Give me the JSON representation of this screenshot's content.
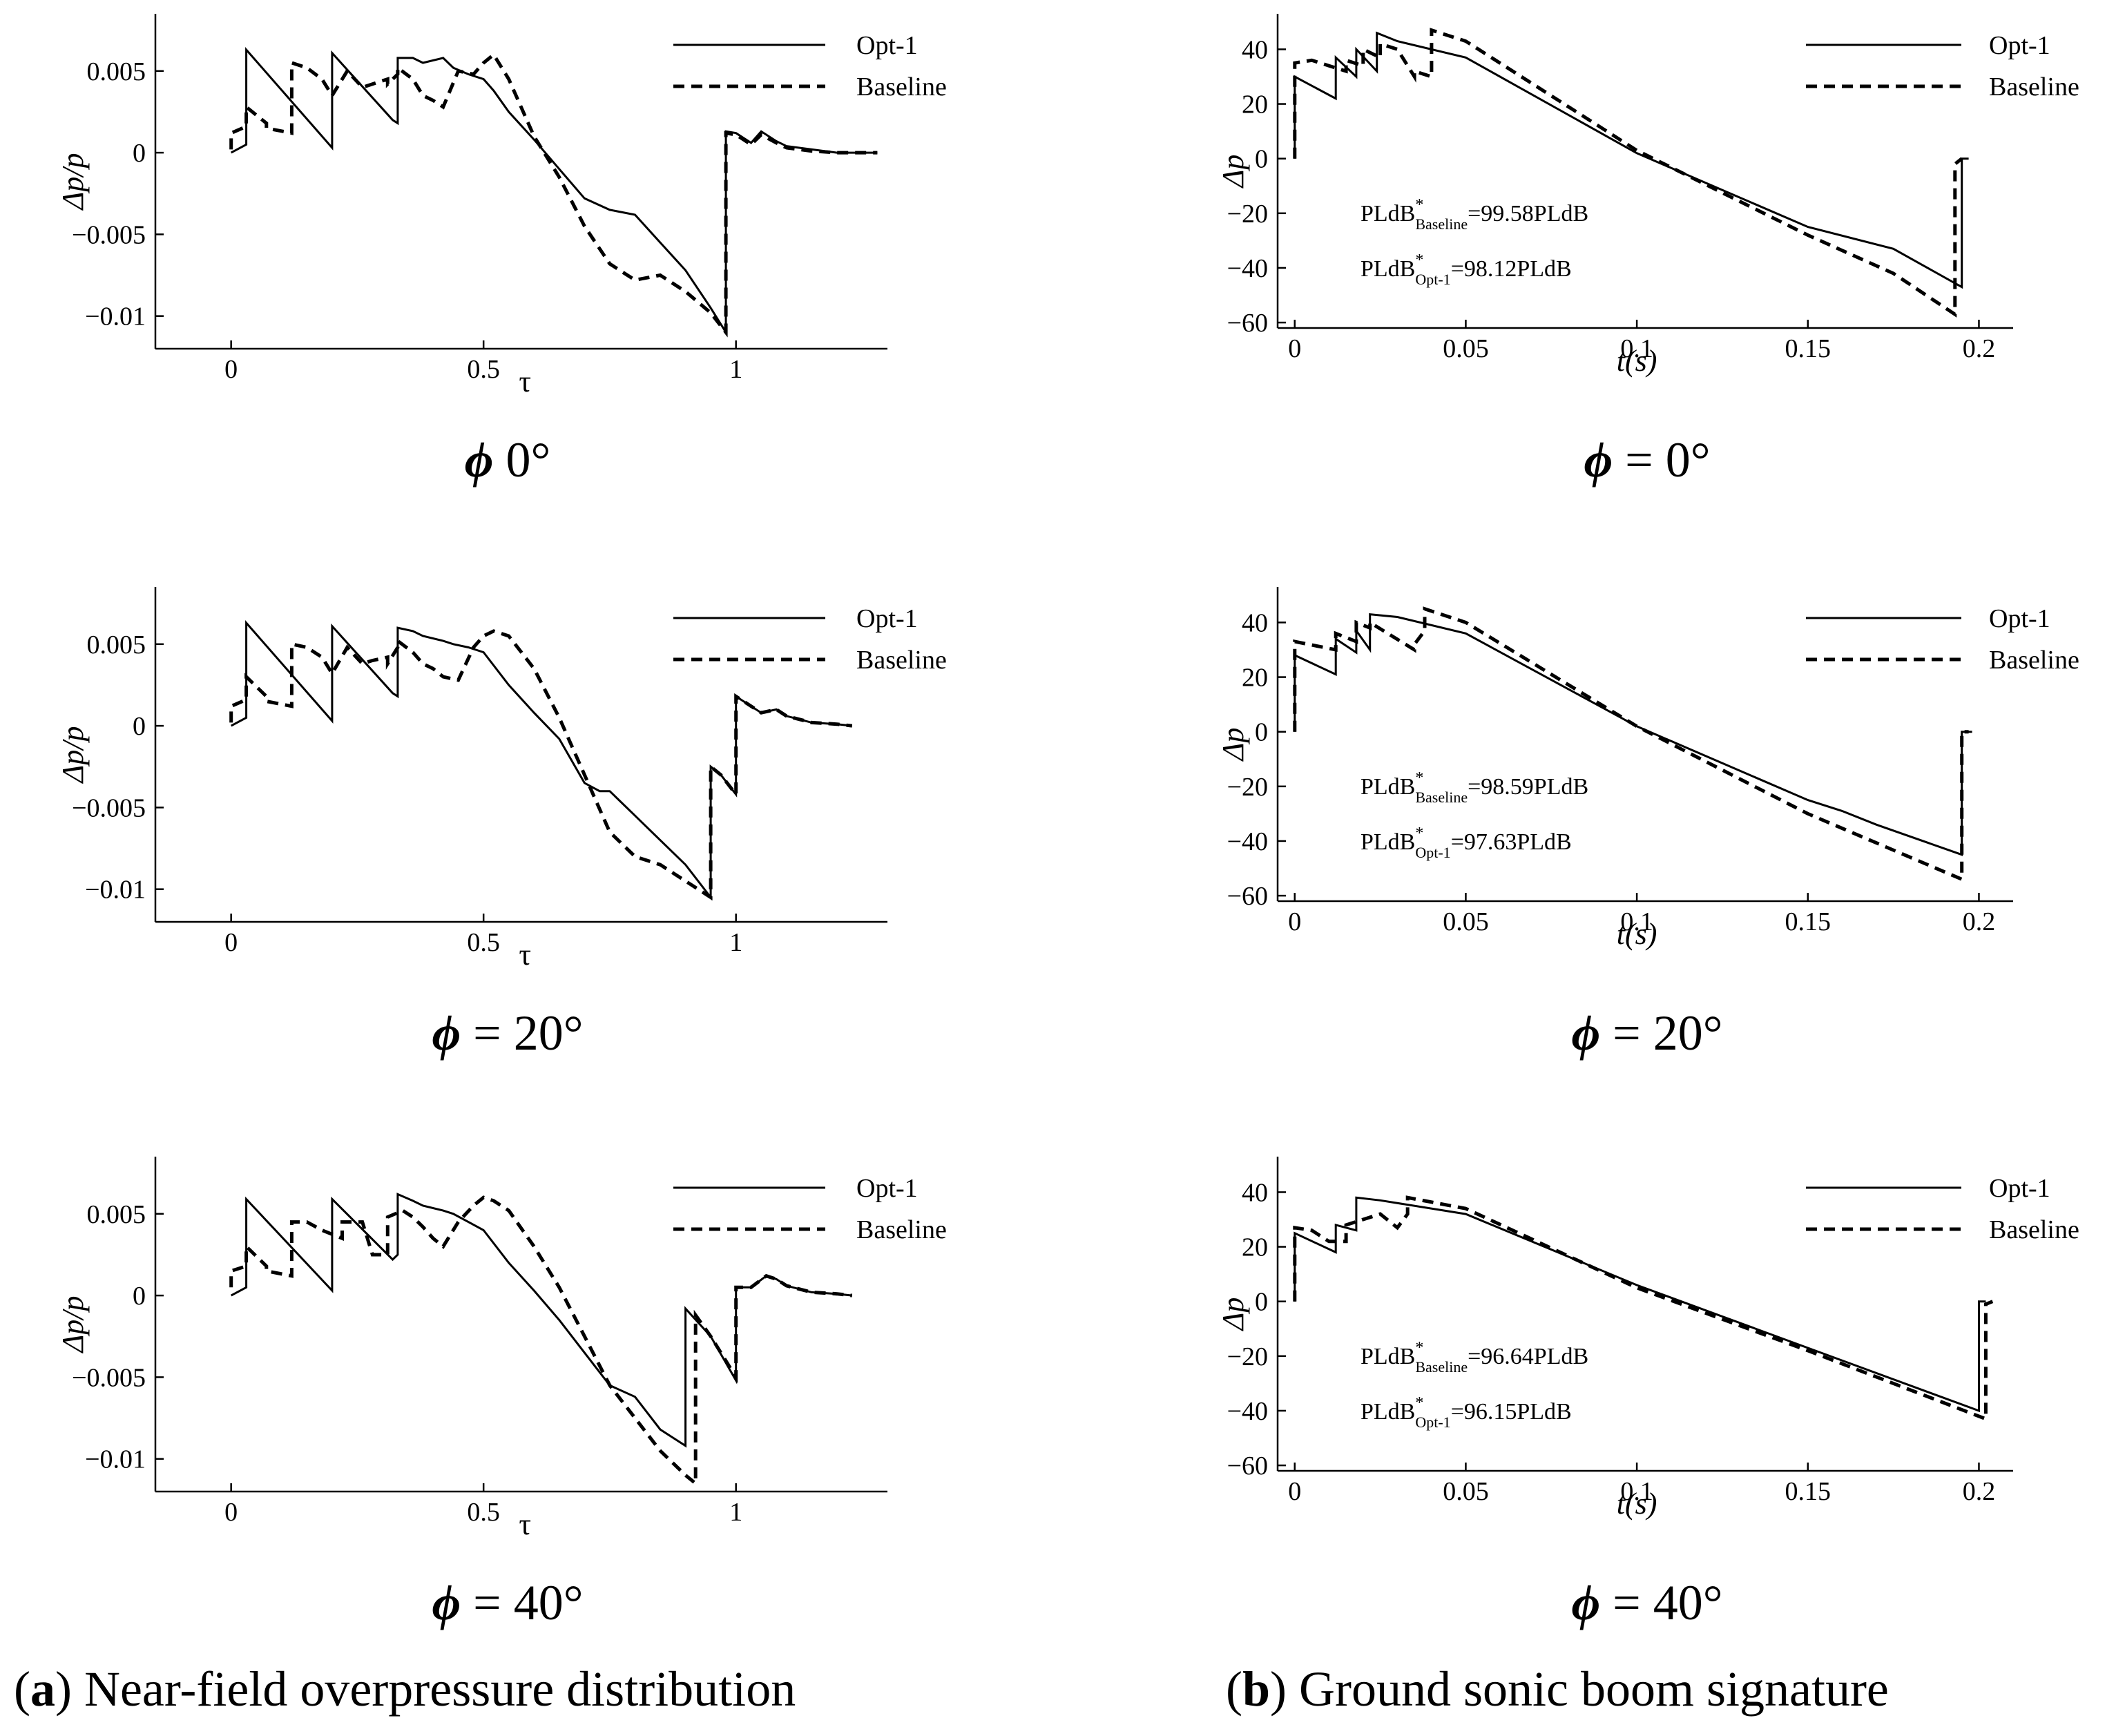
{
  "captions": {
    "a": {
      "letter": "a",
      "text": "Near-field overpressure distribution"
    },
    "b": {
      "letter": "b",
      "text": "Ground sonic boom signature"
    }
  },
  "legend": {
    "opt": "Opt-1",
    "base": "Baseline"
  },
  "chart_data": [
    {
      "id": "a0",
      "type": "line",
      "subtitle_symbol": "ϕ",
      "subtitle_value": "0°",
      "xlabel": "τ",
      "ylabel": "Δp/p",
      "xlim": [
        -0.15,
        1.3
      ],
      "ylim": [
        -0.012,
        0.0085
      ],
      "xticks": [
        0,
        0.5,
        1
      ],
      "xticklabels": [
        "0",
        "0.5",
        "1"
      ],
      "yticks": [
        0.005,
        0,
        -0.005,
        -0.01
      ],
      "yticklabels": [
        "0.005",
        "0",
        "−0.005",
        "−0.01"
      ],
      "legend_position": "top-right",
      "series": [
        {
          "name": "Opt-1",
          "style": "solid",
          "x": [
            0,
            0.03,
            0.03,
            0.2,
            0.2,
            0.32,
            0.33,
            0.33,
            0.36,
            0.38,
            0.42,
            0.44,
            0.47,
            0.5,
            0.52,
            0.55,
            0.6,
            0.65,
            0.7,
            0.75,
            0.8,
            0.85,
            0.9,
            0.95,
            0.98,
            0.98,
            1.0,
            1.03,
            1.05,
            1.08,
            1.1,
            1.15,
            1.2,
            1.25,
            1.28
          ],
          "y": [
            0,
            0.0005,
            0.0063,
            0.0003,
            0.0061,
            0.002,
            0.0018,
            0.0058,
            0.0058,
            0.0055,
            0.0058,
            0.0052,
            0.0048,
            0.0045,
            0.0038,
            0.0025,
            0.0008,
            -0.001,
            -0.0028,
            -0.0035,
            -0.0038,
            -0.0055,
            -0.0072,
            -0.0095,
            -0.011,
            0.0013,
            0.0012,
            0.0006,
            0.0013,
            0.0007,
            0.0004,
            0.0002,
            0,
            0,
            0
          ]
        },
        {
          "name": "Baseline",
          "style": "dashed",
          "x": [
            0,
            0,
            0.03,
            0.03,
            0.07,
            0.07,
            0.12,
            0.12,
            0.15,
            0.18,
            0.2,
            0.23,
            0.26,
            0.28,
            0.31,
            0.31,
            0.33,
            0.33,
            0.36,
            0.38,
            0.4,
            0.42,
            0.45,
            0.48,
            0.5,
            0.52,
            0.55,
            0.6,
            0.65,
            0.7,
            0.75,
            0.8,
            0.85,
            0.9,
            0.95,
            0.98,
            0.98,
            1.0,
            1.03,
            1.05,
            1.08,
            1.1,
            1.15,
            1.2,
            1.25,
            1.28
          ],
          "y": [
            0.0002,
            0.0012,
            0.0016,
            0.0028,
            0.0018,
            0.0015,
            0.0012,
            0.0055,
            0.0052,
            0.0045,
            0.0035,
            0.005,
            0.004,
            0.0042,
            0.0045,
            0.0042,
            0.0048,
            0.0052,
            0.0045,
            0.0035,
            0.0032,
            0.0028,
            0.005,
            0.0048,
            0.0055,
            0.006,
            0.0045,
            0.001,
            -0.0015,
            -0.0045,
            -0.0068,
            -0.0078,
            -0.0075,
            -0.0085,
            -0.0098,
            -0.011,
            0.0012,
            0.0011,
            0.0005,
            0.0011,
            0.0006,
            0.0003,
            0.0001,
            0,
            0,
            0
          ]
        }
      ]
    },
    {
      "id": "a1",
      "type": "line",
      "subtitle_symbol": "ϕ",
      "subtitle_value": "= 20°",
      "xlabel": "τ",
      "ylabel": "Δp/p",
      "xlim": [
        -0.15,
        1.3
      ],
      "ylim": [
        -0.012,
        0.0085
      ],
      "xticks": [
        0,
        0.5,
        1
      ],
      "xticklabels": [
        "0",
        "0.5",
        "1"
      ],
      "yticks": [
        0.005,
        0,
        -0.005,
        -0.01
      ],
      "yticklabels": [
        "0.005",
        "0",
        "−0.005",
        "−0.01"
      ],
      "legend_position": "top-right",
      "series": [
        {
          "name": "Opt-1",
          "style": "solid",
          "x": [
            0,
            0.03,
            0.03,
            0.2,
            0.2,
            0.32,
            0.33,
            0.33,
            0.36,
            0.38,
            0.42,
            0.44,
            0.47,
            0.5,
            0.55,
            0.6,
            0.65,
            0.7,
            0.73,
            0.75,
            0.8,
            0.85,
            0.9,
            0.95,
            0.95,
            0.97,
            1.0,
            1.0,
            1.03,
            1.05,
            1.08,
            1.1,
            1.15,
            1.2,
            1.23
          ],
          "y": [
            0,
            0.0005,
            0.0063,
            0.0003,
            0.0061,
            0.002,
            0.0018,
            0.006,
            0.0058,
            0.0055,
            0.0052,
            0.005,
            0.0048,
            0.0045,
            0.0025,
            0.0008,
            -0.0008,
            -0.0035,
            -0.004,
            -0.004,
            -0.0055,
            -0.007,
            -0.0085,
            -0.0105,
            -0.0025,
            -0.003,
            -0.0042,
            0.0018,
            0.0012,
            0.0008,
            0.001,
            0.0006,
            0.0002,
            0.0001,
            0
          ]
        },
        {
          "name": "Baseline",
          "style": "dashed",
          "x": [
            0,
            0,
            0.03,
            0.03,
            0.07,
            0.07,
            0.12,
            0.12,
            0.15,
            0.18,
            0.2,
            0.23,
            0.26,
            0.28,
            0.31,
            0.31,
            0.33,
            0.33,
            0.36,
            0.38,
            0.4,
            0.42,
            0.45,
            0.48,
            0.5,
            0.52,
            0.55,
            0.6,
            0.65,
            0.7,
            0.75,
            0.8,
            0.85,
            0.9,
            0.95,
            0.95,
            0.97,
            1.0,
            1.0,
            1.03,
            1.05,
            1.08,
            1.1,
            1.15,
            1.2,
            1.23
          ],
          "y": [
            0.0002,
            0.0012,
            0.0016,
            0.003,
            0.0018,
            0.0015,
            0.0012,
            0.005,
            0.0048,
            0.0042,
            0.0032,
            0.0048,
            0.0038,
            0.004,
            0.0042,
            0.0038,
            0.0048,
            0.0052,
            0.0045,
            0.0038,
            0.0035,
            0.003,
            0.0028,
            0.0048,
            0.0055,
            0.0058,
            0.0055,
            0.0035,
            0.0005,
            -0.003,
            -0.0065,
            -0.008,
            -0.0085,
            -0.0095,
            -0.0105,
            -0.0025,
            -0.003,
            -0.0042,
            0.0018,
            0.0012,
            0.0008,
            0.001,
            0.0006,
            0.0002,
            0.0001,
            0
          ]
        }
      ]
    },
    {
      "id": "a2",
      "type": "line",
      "subtitle_symbol": "ϕ",
      "subtitle_value": "= 40°",
      "xlabel": "τ",
      "ylabel": "Δp/p",
      "xlim": [
        -0.15,
        1.3
      ],
      "ylim": [
        -0.012,
        0.0085
      ],
      "xticks": [
        0,
        0.5,
        1
      ],
      "xticklabels": [
        "0",
        "0.5",
        "1"
      ],
      "yticks": [
        0.005,
        0,
        -0.005,
        -0.01
      ],
      "yticklabels": [
        "0.005",
        "0",
        "−0.005",
        "−0.01"
      ],
      "legend_position": "top-right",
      "series": [
        {
          "name": "Opt-1",
          "style": "solid",
          "x": [
            0,
            0.03,
            0.03,
            0.2,
            0.2,
            0.32,
            0.32,
            0.33,
            0.33,
            0.36,
            0.38,
            0.42,
            0.44,
            0.47,
            0.5,
            0.55,
            0.6,
            0.65,
            0.7,
            0.75,
            0.8,
            0.85,
            0.9,
            0.9,
            0.95,
            1.0,
            1.0,
            1.03,
            1.06,
            1.08,
            1.1,
            1.15,
            1.2,
            1.23
          ],
          "y": [
            0,
            0.0005,
            0.0059,
            0.0003,
            0.0059,
            0.0022,
            0.0022,
            0.0025,
            0.0062,
            0.0058,
            0.0055,
            0.0052,
            0.005,
            0.0045,
            0.004,
            0.002,
            0.0003,
            -0.0015,
            -0.0035,
            -0.0055,
            -0.0062,
            -0.0082,
            -0.0092,
            -0.0008,
            -0.0025,
            -0.0052,
            0.0005,
            0.0005,
            0.0012,
            0.001,
            0.0006,
            0.0002,
            0.0001,
            0
          ]
        },
        {
          "name": "Baseline",
          "style": "dashed",
          "x": [
            0,
            0,
            0.03,
            0.03,
            0.07,
            0.07,
            0.12,
            0.12,
            0.15,
            0.18,
            0.22,
            0.22,
            0.26,
            0.28,
            0.31,
            0.31,
            0.34,
            0.36,
            0.38,
            0.4,
            0.42,
            0.45,
            0.48,
            0.5,
            0.52,
            0.55,
            0.6,
            0.65,
            0.7,
            0.75,
            0.8,
            0.85,
            0.9,
            0.92,
            0.92,
            0.95,
            1.0,
            1.0,
            1.03,
            1.06,
            1.08,
            1.1,
            1.15,
            1.2,
            1.23
          ],
          "y": [
            0.0005,
            0.0015,
            0.0018,
            0.003,
            0.0018,
            0.0015,
            0.0012,
            0.0045,
            0.0045,
            0.004,
            0.0035,
            0.0045,
            0.0045,
            0.0025,
            0.0025,
            0.0048,
            0.0052,
            0.0048,
            0.0042,
            0.0035,
            0.003,
            0.0045,
            0.0055,
            0.006,
            0.0058,
            0.0052,
            0.003,
            0.0005,
            -0.0025,
            -0.0055,
            -0.0075,
            -0.0095,
            -0.011,
            -0.0115,
            -0.0012,
            -0.0025,
            -0.005,
            0.0005,
            0.0005,
            0.0012,
            0.001,
            0.0006,
            0.0002,
            0.0001,
            0
          ]
        }
      ]
    },
    {
      "id": "b0",
      "type": "line",
      "subtitle_symbol": "ϕ",
      "subtitle_value": "= 0°",
      "xlabel": "t(s)",
      "ylabel": "Δp",
      "xlim": [
        -0.005,
        0.21
      ],
      "ylim": [
        -62,
        53
      ],
      "xticks": [
        0,
        0.05,
        0.1,
        0.15,
        0.2
      ],
      "xticklabels": [
        "0",
        "0.05",
        "0.1",
        "0.15",
        "0.2"
      ],
      "yticks": [
        40,
        20,
        0,
        -20,
        -40,
        -60
      ],
      "yticklabels": [
        "40",
        "20",
        "0",
        "−20",
        "−40",
        "−60"
      ],
      "legend_position": "top-right",
      "annotations": [
        {
          "label": "PLdB",
          "sup": "*",
          "sub": "Baseline",
          "value": "=99.58PLdB"
        },
        {
          "label": "PLdB",
          "sup": "*",
          "sub": "Opt-1",
          "value": "=98.12PLdB"
        }
      ],
      "series": [
        {
          "name": "Opt-1",
          "style": "solid",
          "x": [
            0,
            0,
            0.012,
            0.012,
            0.018,
            0.018,
            0.024,
            0.024,
            0.03,
            0.05,
            0.1,
            0.15,
            0.175,
            0.195,
            0.195,
            0.197
          ],
          "y": [
            0,
            30,
            22,
            37,
            30,
            40,
            32,
            46,
            43,
            37,
            2,
            -25,
            -33,
            -47,
            0,
            0
          ]
        },
        {
          "name": "Baseline",
          "style": "dashed",
          "x": [
            0,
            0,
            0.005,
            0.01,
            0.015,
            0.015,
            0.02,
            0.02,
            0.025,
            0.025,
            0.03,
            0.035,
            0.035,
            0.04,
            0.04,
            0.05,
            0.1,
            0.15,
            0.175,
            0.193,
            0.193,
            0.195
          ],
          "y": [
            0,
            35,
            36,
            34,
            32,
            36,
            34,
            40,
            37,
            42,
            40,
            30,
            32,
            30,
            47,
            43,
            3,
            -28,
            -42,
            -57,
            -2,
            0
          ]
        }
      ]
    },
    {
      "id": "b1",
      "type": "line",
      "subtitle_symbol": "ϕ",
      "subtitle_value": "= 20°",
      "xlabel": "t(s)",
      "ylabel": "Δp",
      "xlim": [
        -0.005,
        0.21
      ],
      "ylim": [
        -62,
        53
      ],
      "xticks": [
        0,
        0.05,
        0.1,
        0.15,
        0.2
      ],
      "xticklabels": [
        "0",
        "0.05",
        "0.1",
        "0.15",
        "0.2"
      ],
      "yticks": [
        40,
        20,
        0,
        -20,
        -40,
        -60
      ],
      "yticklabels": [
        "40",
        "20",
        "0",
        "−20",
        "−40",
        "−60"
      ],
      "legend_position": "top-right",
      "annotations": [
        {
          "label": "PLdB",
          "sup": "*",
          "sub": "Baseline",
          "value": "=98.59PLdB"
        },
        {
          "label": "PLdB",
          "sup": "*",
          "sub": "Opt-1",
          "value": "=97.63PLdB"
        }
      ],
      "series": [
        {
          "name": "Opt-1",
          "style": "solid",
          "x": [
            0,
            0,
            0.012,
            0.012,
            0.018,
            0.018,
            0.022,
            0.022,
            0.03,
            0.05,
            0.1,
            0.15,
            0.16,
            0.17,
            0.195,
            0.195,
            0.198
          ],
          "y": [
            0,
            28,
            21,
            34,
            29,
            37,
            30,
            43,
            42,
            36,
            2,
            -25,
            -29,
            -34,
            -45,
            0,
            0
          ]
        },
        {
          "name": "Baseline",
          "style": "dashed",
          "x": [
            0,
            0,
            0.012,
            0.012,
            0.018,
            0.018,
            0.022,
            0.022,
            0.035,
            0.035,
            0.038,
            0.038,
            0.05,
            0.1,
            0.15,
            0.195,
            0.195,
            0.197
          ],
          "y": [
            0,
            33,
            30,
            36,
            33,
            40,
            38,
            40,
            30,
            32,
            37,
            45,
            40,
            2,
            -30,
            -54,
            0,
            0
          ]
        }
      ]
    },
    {
      "id": "b2",
      "type": "line",
      "subtitle_symbol": "ϕ",
      "subtitle_value": "= 40°",
      "xlabel": "t(s)",
      "ylabel": "Δp",
      "xlim": [
        -0.005,
        0.21
      ],
      "ylim": [
        -62,
        53
      ],
      "xticks": [
        0,
        0.05,
        0.1,
        0.15,
        0.2
      ],
      "xticklabels": [
        "0",
        "0.05",
        "0.1",
        "0.15",
        "0.2"
      ],
      "yticks": [
        40,
        20,
        0,
        -20,
        -40,
        -60
      ],
      "yticklabels": [
        "40",
        "20",
        "0",
        "−20",
        "−40",
        "−60"
      ],
      "legend_position": "top-right",
      "annotations": [
        {
          "label": "PLdB",
          "sup": "*",
          "sub": "Baseline",
          "value": "=96.64PLdB"
        },
        {
          "label": "PLdB",
          "sup": "*",
          "sub": "Opt-1",
          "value": "=96.15PLdB"
        }
      ],
      "series": [
        {
          "name": "Opt-1",
          "style": "solid",
          "x": [
            0,
            0,
            0.012,
            0.012,
            0.018,
            0.018,
            0.025,
            0.05,
            0.1,
            0.15,
            0.2,
            0.2,
            0.202
          ],
          "y": [
            0,
            25,
            18,
            28,
            26,
            38,
            37,
            32,
            6,
            -17,
            -40,
            0,
            0
          ]
        },
        {
          "name": "Baseline",
          "style": "dashed",
          "x": [
            0,
            0,
            0.005,
            0.01,
            0.015,
            0.015,
            0.02,
            0.025,
            0.03,
            0.03,
            0.033,
            0.033,
            0.05,
            0.1,
            0.15,
            0.202,
            0.202,
            0.204
          ],
          "y": [
            0,
            27,
            26,
            22,
            22,
            28,
            30,
            32,
            27,
            27,
            32,
            38,
            34,
            5,
            -18,
            -43,
            -1,
            0
          ]
        }
      ]
    }
  ]
}
